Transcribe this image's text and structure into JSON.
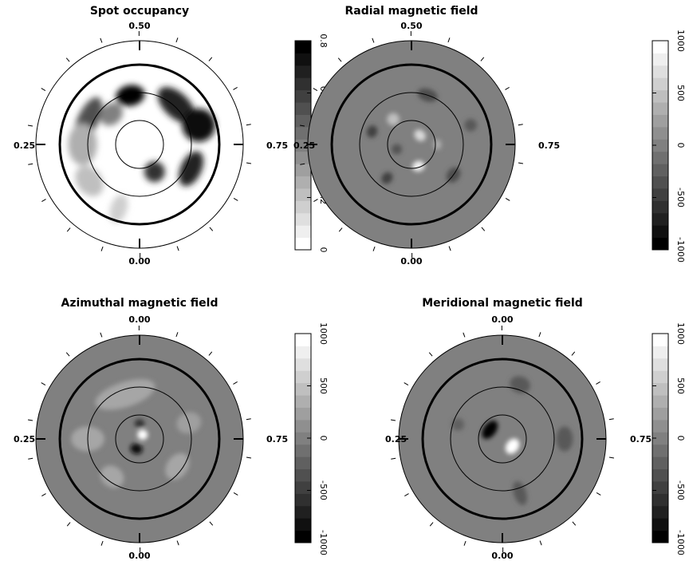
{
  "chart_data": [
    {
      "type": "heatmap",
      "title": "Spot occupancy",
      "projection": "polar",
      "background": "#ffffff",
      "phase_labels": {
        "top": "0.50",
        "left": "0.25",
        "right": "0.75",
        "bottom": "0.00"
      },
      "colorbar": {
        "range": [
          0,
          0.8
        ],
        "ticks": [
          "0",
          "0.2",
          "0.4",
          "0.6",
          "0.8"
        ],
        "tick_values": [
          0,
          0.2,
          0.4,
          0.6,
          0.8
        ],
        "colors": "white-to-black"
      },
      "features": [
        {
          "phase": 0.47,
          "r": 0.48,
          "sx": 0.14,
          "sy": 0.1,
          "value": 0.85
        },
        {
          "phase": 0.62,
          "r": 0.52,
          "sx": 0.22,
          "sy": 0.12,
          "value": 0.7
        },
        {
          "phase": 0.7,
          "r": 0.6,
          "sx": 0.16,
          "sy": 0.16,
          "value": 0.75
        },
        {
          "phase": 0.82,
          "r": 0.55,
          "sx": 0.18,
          "sy": 0.1,
          "value": 0.7
        },
        {
          "phase": 0.92,
          "r": 0.3,
          "sx": 0.1,
          "sy": 0.1,
          "value": 0.65
        },
        {
          "phase": 0.32,
          "r": 0.55,
          "sx": 0.24,
          "sy": 0.1,
          "value": 0.55
        },
        {
          "phase": 0.25,
          "r": 0.55,
          "sx": 0.2,
          "sy": 0.14,
          "value": 0.25
        },
        {
          "phase": 0.15,
          "r": 0.6,
          "sx": 0.16,
          "sy": 0.12,
          "value": 0.2
        },
        {
          "phase": 0.05,
          "r": 0.65,
          "sx": 0.08,
          "sy": 0.14,
          "value": 0.15
        },
        {
          "phase": 0.38,
          "r": 0.4,
          "sx": 0.12,
          "sy": 0.1,
          "value": 0.4
        }
      ]
    },
    {
      "type": "heatmap",
      "title": "Radial magnetic field",
      "projection": "polar",
      "background": "#808080",
      "phase_labels": {
        "top": "0.50",
        "left": "0.25",
        "right": "0.75",
        "bottom": "0.00"
      },
      "colorbar": {
        "range": [
          -1000,
          1000
        ],
        "ticks": [
          "-1000",
          "-500",
          "0",
          "500",
          "1000"
        ],
        "tick_values": [
          -1000,
          -500,
          0,
          500,
          1000
        ],
        "colors": "black-to-white"
      },
      "features": [
        {
          "phase": 0.95,
          "r": 0.22,
          "sx": 0.06,
          "sy": 0.05,
          "value": 900
        },
        {
          "phase": 0.62,
          "r": 0.12,
          "sx": 0.06,
          "sy": 0.05,
          "value": 700
        },
        {
          "phase": 0.4,
          "r": 0.3,
          "sx": 0.06,
          "sy": 0.06,
          "value": 500
        },
        {
          "phase": 0.55,
          "r": 0.5,
          "sx": 0.1,
          "sy": 0.06,
          "value": -400
        },
        {
          "phase": 0.3,
          "r": 0.4,
          "sx": 0.06,
          "sy": 0.05,
          "value": -500
        },
        {
          "phase": 0.1,
          "r": 0.4,
          "sx": 0.05,
          "sy": 0.06,
          "value": -500
        },
        {
          "phase": 0.85,
          "r": 0.5,
          "sx": 0.08,
          "sy": 0.06,
          "value": -400
        },
        {
          "phase": 0.7,
          "r": 0.6,
          "sx": 0.06,
          "sy": 0.06,
          "value": -300
        },
        {
          "phase": 0.2,
          "r": 0.15,
          "sx": 0.05,
          "sy": 0.05,
          "value": -350
        },
        {
          "phase": 0.75,
          "r": 0.25,
          "sx": 0.05,
          "sy": 0.04,
          "value": 350
        }
      ]
    },
    {
      "type": "heatmap",
      "title": "Azimuthal magnetic field",
      "projection": "polar",
      "background": "#808080",
      "phase_labels": {
        "top": "0.00",
        "left": "0.25",
        "right": "0.75",
        "bottom": "0.00"
      },
      "colorbar": {
        "range": [
          -1000,
          1000
        ],
        "ticks": [
          "-1000",
          "-500",
          "0",
          "500",
          "1000"
        ],
        "tick_values": [
          -1000,
          -500,
          0,
          500,
          1000
        ],
        "colors": "black-to-white"
      },
      "features": [
        {
          "phase": 0.6,
          "r": 0.05,
          "sx": 0.05,
          "sy": 0.05,
          "value": 1000
        },
        {
          "phase": 0.05,
          "r": 0.1,
          "sx": 0.06,
          "sy": 0.05,
          "value": -900
        },
        {
          "phase": 0.5,
          "r": 0.15,
          "sx": 0.05,
          "sy": 0.04,
          "value": -600
        },
        {
          "phase": 0.45,
          "r": 0.45,
          "sx": 0.3,
          "sy": 0.12,
          "value": 300
        },
        {
          "phase": 0.25,
          "r": 0.5,
          "sx": 0.12,
          "sy": 0.16,
          "value": 300
        },
        {
          "phase": 0.85,
          "r": 0.45,
          "sx": 0.14,
          "sy": 0.1,
          "value": 300
        },
        {
          "phase": 0.1,
          "r": 0.45,
          "sx": 0.12,
          "sy": 0.1,
          "value": 300
        },
        {
          "phase": 0.7,
          "r": 0.5,
          "sx": 0.1,
          "sy": 0.12,
          "value": 250
        }
      ]
    },
    {
      "type": "heatmap",
      "title": "Meridional magnetic field",
      "projection": "polar",
      "background": "#808080",
      "phase_labels": {
        "top": "0.00",
        "left": "0.25",
        "right": "0.75",
        "bottom": "0.00"
      },
      "colorbar": {
        "range": [
          -1000,
          1000
        ],
        "ticks": [
          "-1000",
          "-500",
          "0",
          "500",
          "1000"
        ],
        "tick_values": [
          -1000,
          -500,
          0,
          500,
          1000
        ],
        "colors": "black-to-white"
      },
      "features": [
        {
          "phase": 0.35,
          "r": 0.15,
          "sx": 0.1,
          "sy": 0.06,
          "value": -1000
        },
        {
          "phase": 0.85,
          "r": 0.12,
          "sx": 0.08,
          "sy": 0.06,
          "value": 1000
        },
        {
          "phase": 0.55,
          "r": 0.55,
          "sx": 0.1,
          "sy": 0.08,
          "value": -300
        },
        {
          "phase": 0.75,
          "r": 0.6,
          "sx": 0.12,
          "sy": 0.08,
          "value": -300
        },
        {
          "phase": 0.95,
          "r": 0.55,
          "sx": 0.06,
          "sy": 0.12,
          "value": -300
        },
        {
          "phase": 0.3,
          "r": 0.45,
          "sx": 0.06,
          "sy": 0.06,
          "value": -250
        }
      ]
    }
  ]
}
